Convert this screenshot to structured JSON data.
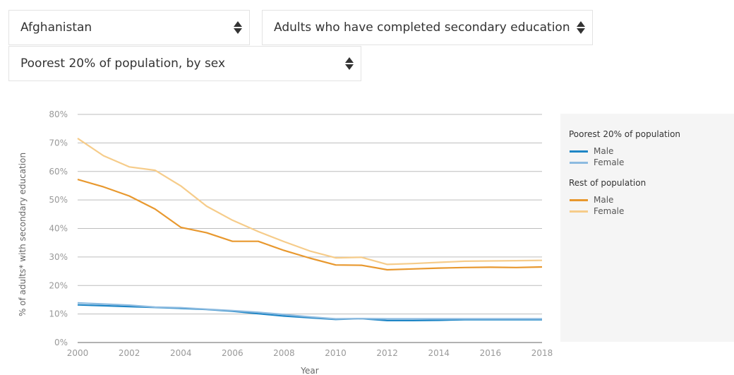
{
  "selectors": {
    "country": "Afghanistan",
    "indicator": "Adults who have completed secondary education",
    "breakdown": "Poorest 20% of population, by sex"
  },
  "legend": {
    "groups": [
      {
        "title": "Poorest 20% of population",
        "items": [
          {
            "label": "Male",
            "color": "#1f86c6"
          },
          {
            "label": "Female",
            "color": "#8dbbe0"
          }
        ]
      },
      {
        "title": "Rest of population",
        "items": [
          {
            "label": "Male",
            "color": "#e8982e"
          },
          {
            "label": "Female",
            "color": "#f6cc8a"
          }
        ]
      }
    ]
  },
  "chart_data": {
    "type": "line",
    "xlabel": "Year",
    "ylabel": "% of adults* with secondary education",
    "xlim": [
      2000,
      2018
    ],
    "ylim": [
      0,
      80
    ],
    "xticks": [
      "2000",
      "2002",
      "2004",
      "2006",
      "2008",
      "2010",
      "2012",
      "2014",
      "2016",
      "2018"
    ],
    "yticks": [
      "0%",
      "10%",
      "20%",
      "30%",
      "40%",
      "50%",
      "60%",
      "70%",
      "80%"
    ],
    "grid": true,
    "legend_position": "right",
    "x": [
      2000,
      2001,
      2002,
      2003,
      2004,
      2005,
      2006,
      2007,
      2008,
      2009,
      2010,
      2011,
      2012,
      2013,
      2014,
      2015,
      2016,
      2017,
      2018
    ],
    "series": [
      {
        "group": "Poorest 20% of population",
        "name": "Male",
        "color": "#1f86c6",
        "values": [
          13.2,
          12.9,
          12.6,
          12.3,
          12.0,
          11.6,
          11.0,
          10.1,
          9.3,
          8.7,
          8.1,
          8.4,
          7.7,
          7.7,
          7.8,
          8.0,
          8.0,
          8.0,
          8.0
        ]
      },
      {
        "group": "Poorest 20% of population",
        "name": "Female",
        "color": "#8dbbe0",
        "values": [
          13.9,
          13.5,
          13.1,
          12.4,
          12.2,
          11.7,
          11.2,
          10.6,
          9.8,
          9.0,
          8.3,
          8.4,
          8.3,
          8.3,
          8.3,
          8.3,
          8.3,
          8.3,
          8.3
        ]
      },
      {
        "group": "Rest of population",
        "name": "Male",
        "color": "#e8982e",
        "values": [
          57.2,
          54.6,
          51.4,
          46.8,
          40.4,
          38.5,
          35.5,
          35.5,
          32.3,
          29.6,
          27.2,
          27.1,
          25.5,
          25.8,
          26.1,
          26.3,
          26.4,
          26.3,
          26.5
        ]
      },
      {
        "group": "Rest of population",
        "name": "Female",
        "color": "#f6cc8a",
        "values": [
          71.6,
          65.5,
          61.6,
          60.4,
          54.9,
          47.8,
          42.9,
          38.9,
          35.4,
          32.1,
          29.7,
          29.9,
          27.4,
          27.7,
          28.1,
          28.5,
          28.6,
          28.7,
          28.8
        ]
      }
    ]
  }
}
